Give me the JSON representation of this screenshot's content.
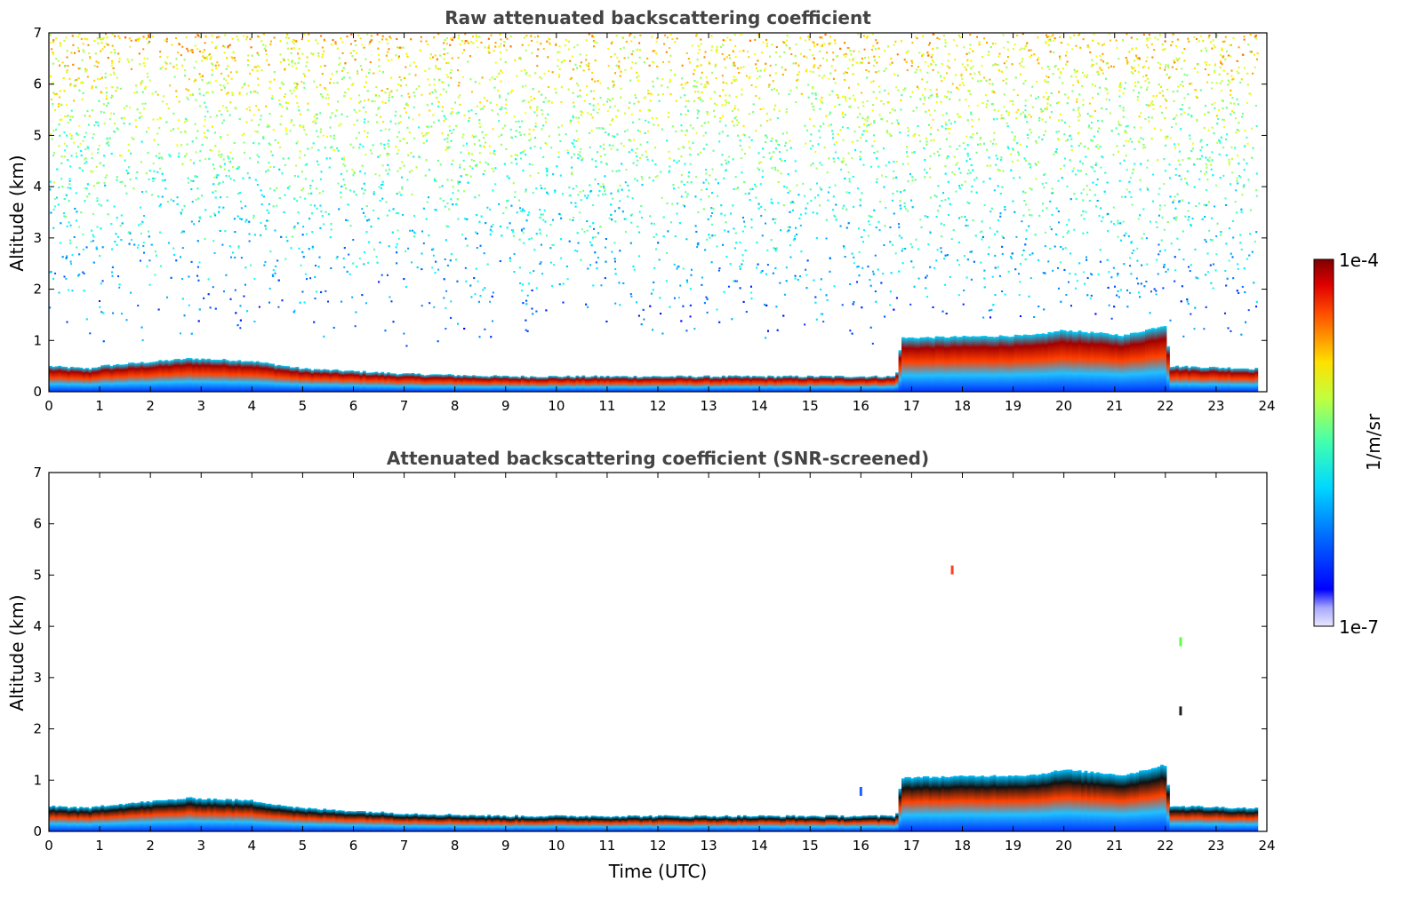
{
  "chart_data": [
    {
      "type": "heatmap",
      "title": "Raw attenuated backscattering coefficient",
      "xlabel": "",
      "ylabel": "Altitude (km)",
      "xlim": [
        0,
        24
      ],
      "ylim": [
        0,
        7
      ],
      "xticks": [
        "0",
        "1",
        "2",
        "3",
        "4",
        "5",
        "6",
        "7",
        "8",
        "9",
        "10",
        "11",
        "12",
        "13",
        "14",
        "15",
        "16",
        "17",
        "18",
        "19",
        "20",
        "21",
        "22",
        "23",
        "24"
      ],
      "yticks": [
        "0",
        "1",
        "2",
        "3",
        "4",
        "5",
        "6",
        "7"
      ],
      "data_end_hour": 23.8,
      "layer_top_km": [
        [
          0,
          0.5
        ],
        [
          0.8,
          0.45
        ],
        [
          1,
          0.5
        ],
        [
          2.8,
          0.65
        ],
        [
          4,
          0.6
        ],
        [
          5,
          0.45
        ],
        [
          7,
          0.35
        ],
        [
          9,
          0.3
        ],
        [
          13,
          0.3
        ],
        [
          16.7,
          0.3
        ],
        [
          16.8,
          1.05
        ],
        [
          19.4,
          1.1
        ],
        [
          20,
          1.2
        ],
        [
          21.2,
          1.1
        ],
        [
          22,
          1.3
        ],
        [
          22.1,
          0.5
        ],
        [
          23.8,
          0.45
        ]
      ],
      "noise": "dense above 3 km, increasing with altitude",
      "colormap": "jet",
      "grid": false
    },
    {
      "type": "heatmap",
      "title": "Attenuated backscattering coefficient (SNR-screened)",
      "xlabel": "Time (UTC)",
      "ylabel": "Altitude (km)",
      "xlim": [
        0,
        24
      ],
      "ylim": [
        0,
        7
      ],
      "xticks": [
        "0",
        "1",
        "2",
        "3",
        "4",
        "5",
        "6",
        "7",
        "8",
        "9",
        "10",
        "11",
        "12",
        "13",
        "14",
        "15",
        "16",
        "17",
        "18",
        "19",
        "20",
        "21",
        "22",
        "23",
        "24"
      ],
      "yticks": [
        "0",
        "1",
        "2",
        "3",
        "4",
        "5",
        "6",
        "7"
      ],
      "data_end_hour": 23.8,
      "layer_top_km": [
        [
          0,
          0.5
        ],
        [
          0.8,
          0.45
        ],
        [
          1,
          0.5
        ],
        [
          2.8,
          0.65
        ],
        [
          4,
          0.6
        ],
        [
          5,
          0.45
        ],
        [
          7,
          0.35
        ],
        [
          9,
          0.3
        ],
        [
          13,
          0.3
        ],
        [
          16.7,
          0.3
        ],
        [
          16.8,
          1.05
        ],
        [
          19.4,
          1.1
        ],
        [
          20,
          1.2
        ],
        [
          21.2,
          1.1
        ],
        [
          22,
          1.3
        ],
        [
          22.1,
          0.5
        ],
        [
          23.8,
          0.45
        ]
      ],
      "isolated_features": [
        [
          17.8,
          5.1
        ],
        [
          22.3,
          3.7
        ],
        [
          22.3,
          2.35
        ],
        [
          16,
          0.78
        ]
      ],
      "colormap": "jet",
      "grid": false
    }
  ],
  "colorbar": {
    "max_label": "1e-4",
    "min_label": "1e-7",
    "unit_label": "1/m/sr",
    "scale": "log"
  }
}
